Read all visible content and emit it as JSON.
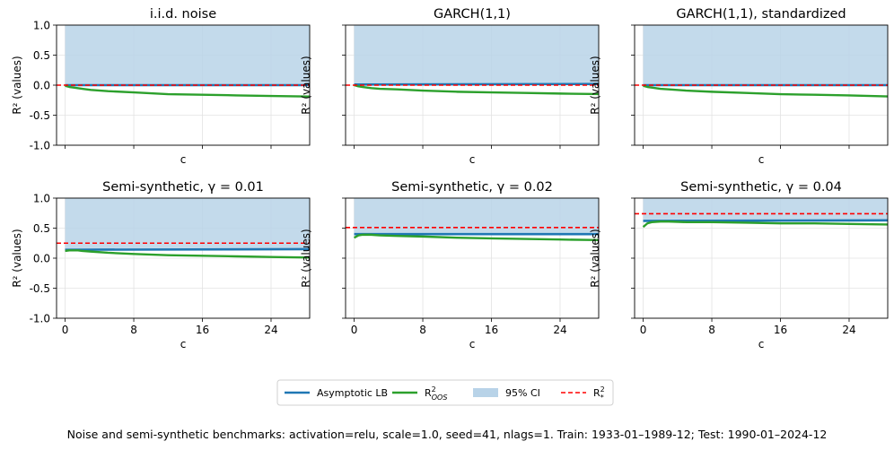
{
  "figure": {
    "caption": "Noise and semi-synthetic benchmarks: activation=relu, scale=1.0, seed=41, nlags=1. Train: 1933-01–1989-12; Test: 1990-01–2024-12",
    "colors": {
      "lb": "#1f77b4",
      "oos": "#2ca02c",
      "ci": "#b8d3e8",
      "star": "#ff0000"
    },
    "legend": {
      "position": "bottom-center",
      "items": [
        {
          "key": "lb",
          "label": "Asymptotic LB"
        },
        {
          "key": "oos",
          "label": "R",
          "sup": "2",
          "sub": "OOS"
        },
        {
          "key": "ci",
          "label": "95% CI"
        },
        {
          "key": "star",
          "label": "R",
          "sup": "2",
          "sub": "*"
        }
      ]
    }
  },
  "chart_data": [
    {
      "type": "line",
      "title": "i.i.d. noise",
      "xlabel": "c",
      "ylabel": "R² (values)",
      "xlim": [
        -1,
        28.5
      ],
      "ylim": [
        -1.0,
        1.0
      ],
      "x_ticks": [
        0,
        8,
        16,
        24
      ],
      "y_ticks": [
        -1.0,
        -0.5,
        0.0,
        0.5,
        1.0
      ],
      "y_tick_labels": [
        "-1.0",
        "-0.5",
        "0.0",
        "0.5",
        "1.0"
      ],
      "show_x_tick_labels": false,
      "show_y_tick_labels": true,
      "ci": {
        "x": [
          0,
          29
        ],
        "lower": 0.0,
        "upper": 1.0
      },
      "r2_star": 0.0,
      "series": [
        {
          "name": "Asymptotic LB",
          "x": [
            0,
            29
          ],
          "y": [
            0.0,
            0.0
          ]
        },
        {
          "name": "R2_OOS",
          "x": [
            0,
            0.5,
            1,
            2,
            3,
            5,
            8,
            12,
            16,
            20,
            24,
            29
          ],
          "y": [
            -0.01,
            -0.03,
            -0.04,
            -0.06,
            -0.08,
            -0.1,
            -0.12,
            -0.15,
            -0.16,
            -0.17,
            -0.18,
            -0.19
          ]
        }
      ]
    },
    {
      "type": "line",
      "title": "GARCH(1,1)",
      "xlabel": "c",
      "ylabel": "R² (values)",
      "xlim": [
        -1,
        28.5
      ],
      "ylim": [
        -1.0,
        1.0
      ],
      "x_ticks": [
        0,
        8,
        16,
        24
      ],
      "y_ticks": [
        -1.0,
        -0.5,
        0.0,
        0.5,
        1.0
      ],
      "y_tick_labels": [
        "-1.0",
        "-0.5",
        "0.0",
        "0.5",
        "1.0"
      ],
      "show_x_tick_labels": false,
      "show_y_tick_labels": false,
      "ci": {
        "x": [
          0,
          29
        ],
        "lower": 0.0,
        "upper": 1.0
      },
      "r2_star": 0.0,
      "series": [
        {
          "name": "Asymptotic LB",
          "x": [
            0,
            29
          ],
          "y": [
            0.01,
            0.02
          ]
        },
        {
          "name": "R2_OOS",
          "x": [
            0,
            0.5,
            1,
            2,
            3,
            5,
            8,
            12,
            16,
            20,
            24,
            29
          ],
          "y": [
            0.0,
            -0.02,
            -0.03,
            -0.05,
            -0.06,
            -0.07,
            -0.09,
            -0.11,
            -0.12,
            -0.13,
            -0.14,
            -0.15
          ]
        }
      ]
    },
    {
      "type": "line",
      "title": "GARCH(1,1), standardized",
      "xlabel": "c",
      "ylabel": "R² (values)",
      "xlim": [
        -1,
        28.5
      ],
      "ylim": [
        -1.0,
        1.0
      ],
      "x_ticks": [
        0,
        8,
        16,
        24
      ],
      "y_ticks": [
        -1.0,
        -0.5,
        0.0,
        0.5,
        1.0
      ],
      "y_tick_labels": [
        "-1.0",
        "-0.5",
        "0.0",
        "0.5",
        "1.0"
      ],
      "show_x_tick_labels": false,
      "show_y_tick_labels": false,
      "ci": {
        "x": [
          0,
          29
        ],
        "lower": 0.0,
        "upper": 1.0
      },
      "r2_star": 0.0,
      "series": [
        {
          "name": "Asymptotic LB",
          "x": [
            0,
            29
          ],
          "y": [
            0.0,
            0.0
          ]
        },
        {
          "name": "R2_OOS",
          "x": [
            0,
            0.5,
            1,
            2,
            3,
            5,
            8,
            12,
            16,
            20,
            24,
            29
          ],
          "y": [
            -0.01,
            -0.03,
            -0.04,
            -0.06,
            -0.07,
            -0.09,
            -0.11,
            -0.13,
            -0.15,
            -0.16,
            -0.17,
            -0.19
          ]
        }
      ]
    },
    {
      "type": "line",
      "title": "Semi-synthetic, γ = 0.01",
      "xlabel": "c",
      "ylabel": "R² (values)",
      "xlim": [
        -1,
        28.5
      ],
      "ylim": [
        -1.0,
        1.0
      ],
      "x_ticks": [
        0,
        8,
        16,
        24
      ],
      "y_ticks": [
        -1.0,
        -0.5,
        0.0,
        0.5,
        1.0
      ],
      "x_tick_labels": [
        "0",
        "8",
        "16",
        "24"
      ],
      "y_tick_labels": [
        "-1.0",
        "-0.5",
        "0.0",
        "0.5",
        "1.0"
      ],
      "show_x_tick_labels": true,
      "show_y_tick_labels": true,
      "ci": {
        "x": [
          0,
          29
        ],
        "lower": 0.14,
        "upper": 1.0
      },
      "r2_star": 0.25,
      "series": [
        {
          "name": "Asymptotic LB",
          "x": [
            0,
            29
          ],
          "y": [
            0.14,
            0.15
          ]
        },
        {
          "name": "R2_OOS",
          "x": [
            0,
            0.5,
            1,
            1.5,
            2,
            3,
            5,
            8,
            12,
            16,
            20,
            24,
            29
          ],
          "y": [
            0.12,
            0.13,
            0.13,
            0.13,
            0.12,
            0.11,
            0.09,
            0.07,
            0.05,
            0.04,
            0.03,
            0.02,
            0.01
          ]
        }
      ]
    },
    {
      "type": "line",
      "title": "Semi-synthetic, γ = 0.02",
      "xlabel": "c",
      "ylabel": "R² (values)",
      "xlim": [
        -1,
        28.5
      ],
      "ylim": [
        -1.0,
        1.0
      ],
      "x_ticks": [
        0,
        8,
        16,
        24
      ],
      "y_ticks": [
        -1.0,
        -0.5,
        0.0,
        0.5,
        1.0
      ],
      "x_tick_labels": [
        "0",
        "8",
        "16",
        "24"
      ],
      "y_tick_labels": [
        "-1.0",
        "-0.5",
        "0.0",
        "0.5",
        "1.0"
      ],
      "show_x_tick_labels": true,
      "show_y_tick_labels": false,
      "ci": {
        "x": [
          0,
          29
        ],
        "lower": 0.4,
        "upper": 1.0
      },
      "r2_star": 0.51,
      "series": [
        {
          "name": "Asymptotic LB",
          "x": [
            0,
            29
          ],
          "y": [
            0.4,
            0.4
          ]
        },
        {
          "name": "R2_OOS",
          "x": [
            0,
            0.5,
            1,
            2,
            3,
            5,
            8,
            12,
            16,
            20,
            24,
            29
          ],
          "y": [
            0.34,
            0.38,
            0.39,
            0.39,
            0.38,
            0.37,
            0.36,
            0.34,
            0.33,
            0.32,
            0.31,
            0.3
          ]
        }
      ]
    },
    {
      "type": "line",
      "title": "Semi-synthetic, γ = 0.04",
      "xlabel": "c",
      "ylabel": "R² (values)",
      "xlim": [
        -1,
        28.5
      ],
      "ylim": [
        -1.0,
        1.0
      ],
      "x_ticks": [
        0,
        8,
        16,
        24
      ],
      "y_ticks": [
        -1.0,
        -0.5,
        0.0,
        0.5,
        1.0
      ],
      "x_tick_labels": [
        "0",
        "8",
        "16",
        "24"
      ],
      "y_tick_labels": [
        "-1.0",
        "-0.5",
        "0.0",
        "0.5",
        "1.0"
      ],
      "show_x_tick_labels": true,
      "show_y_tick_labels": false,
      "ci": {
        "x": [
          0,
          29
        ],
        "lower": 0.62,
        "upper": 1.0
      },
      "r2_star": 0.74,
      "series": [
        {
          "name": "Asymptotic LB",
          "x": [
            0,
            29
          ],
          "y": [
            0.62,
            0.63
          ]
        },
        {
          "name": "R2_OOS",
          "x": [
            0,
            0.5,
            1,
            2,
            3,
            5,
            8,
            12,
            16,
            20,
            24,
            29
          ],
          "y": [
            0.52,
            0.58,
            0.6,
            0.61,
            0.61,
            0.6,
            0.6,
            0.59,
            0.58,
            0.58,
            0.57,
            0.56
          ]
        }
      ]
    }
  ]
}
